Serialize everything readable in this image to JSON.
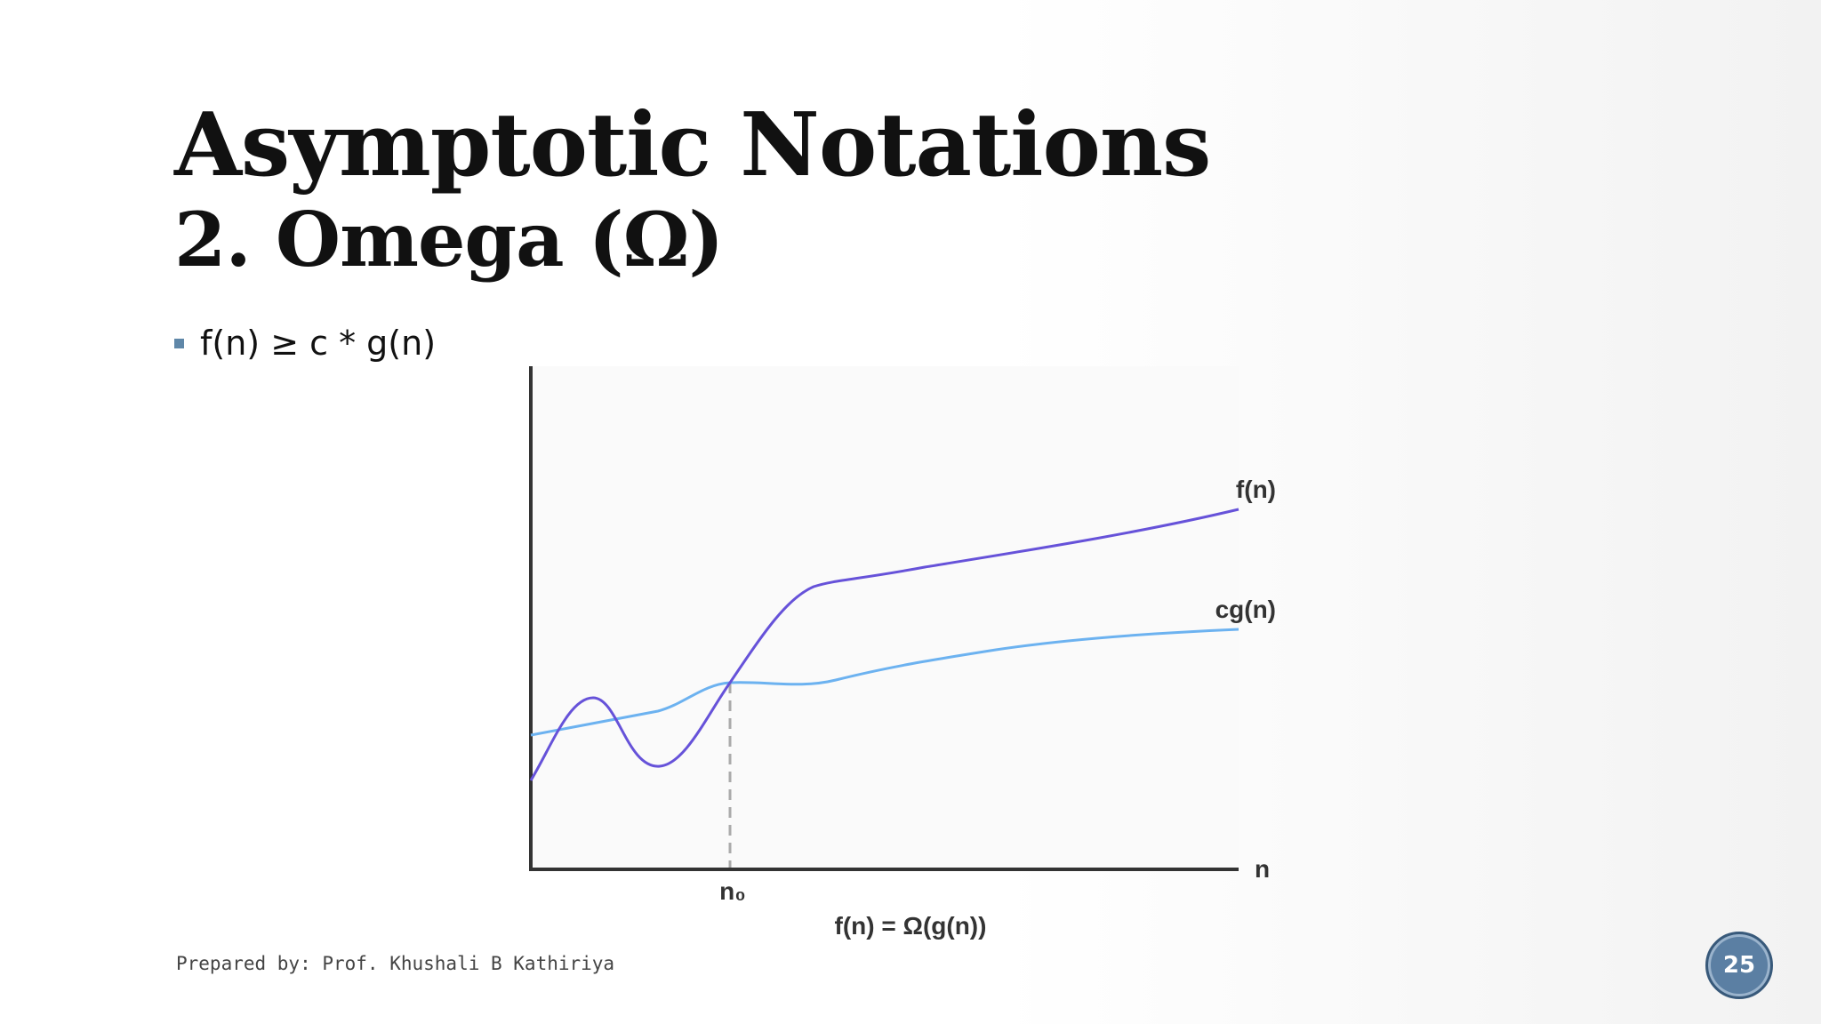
{
  "slide": {
    "title_line1": "Asymptotic Notations",
    "title_line2": "2. Omega (Ω)",
    "bullet": "f(n) ≥ c * g(n)",
    "footer": "Prepared by: Prof. Khushali B Kathiriya",
    "page_number": "25"
  },
  "diagram": {
    "fn_label": "f(n)",
    "cgn_label": "cg(n)",
    "x_axis_label": "n",
    "n0_label": "n₀",
    "caption": "f(n) = Ω(g(n))",
    "colors": {
      "fn": "#6652d9",
      "cgn": "#6cb2f0",
      "axis": "#333333",
      "dashed": "#aaaaaa"
    }
  }
}
